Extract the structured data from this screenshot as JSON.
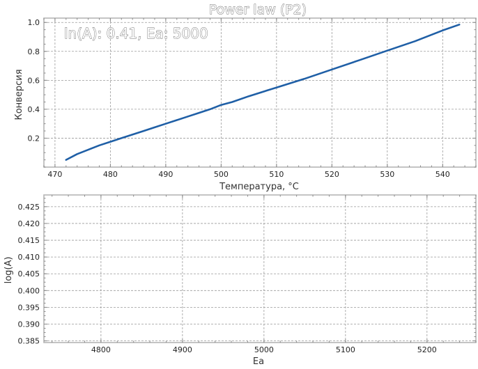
{
  "title": "Power law (P2)",
  "colors": {
    "line": "#1f5fa6",
    "grid": "#9a9a9a",
    "frame": "#b5b5b5"
  },
  "chart_data": [
    {
      "type": "line",
      "annotation": "ln(A): 0.41, Ea: 5000",
      "xlabel": "Температура, °C",
      "ylabel": "Конверсия",
      "xlim": [
        468,
        546
      ],
      "ylim": [
        0.0,
        1.03
      ],
      "xticks": [
        470,
        480,
        490,
        500,
        510,
        520,
        530,
        540
      ],
      "yticks": [
        0.2,
        0.4,
        0.6,
        0.8,
        1.0
      ],
      "ytick_labels": [
        "0.2",
        "0.4",
        "0.6",
        "0.8",
        "1.0"
      ],
      "grid": true,
      "series": [
        {
          "x": [
            472,
            474,
            476,
            478,
            480,
            482,
            484,
            486,
            488,
            490,
            492,
            494,
            496,
            498,
            500,
            502,
            505,
            510,
            515,
            520,
            525,
            530,
            535,
            540,
            543
          ],
          "y": [
            0.05,
            0.09,
            0.12,
            0.15,
            0.175,
            0.2,
            0.225,
            0.25,
            0.275,
            0.3,
            0.325,
            0.35,
            0.375,
            0.4,
            0.43,
            0.45,
            0.49,
            0.55,
            0.61,
            0.675,
            0.74,
            0.805,
            0.87,
            0.945,
            0.985
          ]
        }
      ]
    },
    {
      "type": "line",
      "xlabel": "Ea",
      "ylabel": "log(A)",
      "xlim": [
        4730,
        5260
      ],
      "ylim": [
        0.3845,
        0.4285
      ],
      "xticks": [
        4800,
        4900,
        5000,
        5100,
        5200
      ],
      "yticks": [
        0.385,
        0.39,
        0.395,
        0.4,
        0.405,
        0.41,
        0.415,
        0.42,
        0.425
      ],
      "ytick_labels": [
        "0.385",
        "0.390",
        "0.395",
        "0.400",
        "0.405",
        "0.410",
        "0.415",
        "0.420",
        "0.425"
      ],
      "grid": true,
      "series": []
    }
  ]
}
